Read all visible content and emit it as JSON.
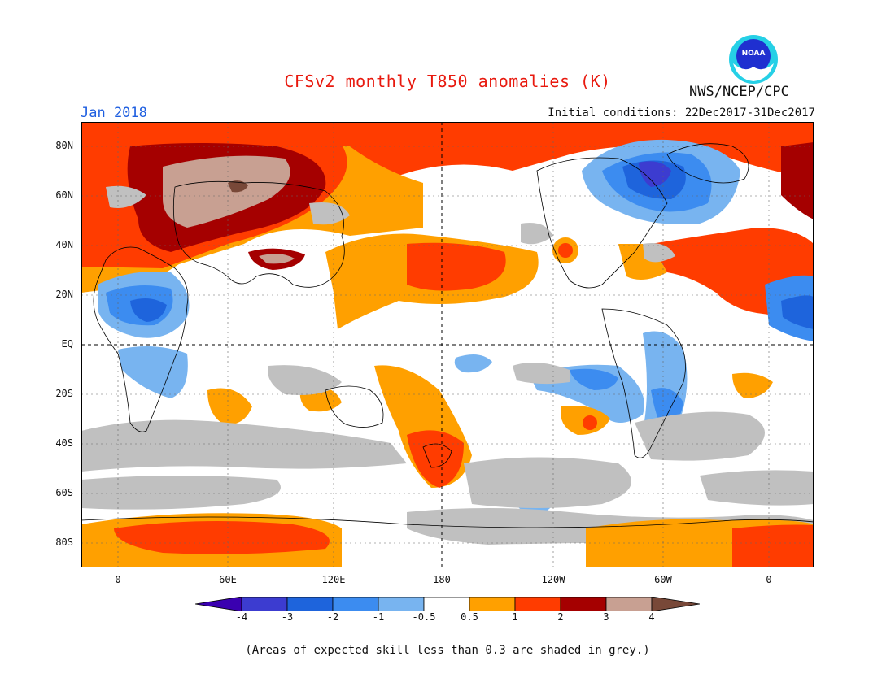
{
  "header": {
    "title": "CFSv2 monthly T850 anomalies (K)",
    "period": "Jan 2018",
    "initial_conditions": "Initial conditions: 22Dec2017-31Dec2017",
    "agency": "NWS/NCEP/CPC",
    "logo_text": "NOAA"
  },
  "map": {
    "lat_labels": [
      "80N",
      "60N",
      "40N",
      "20N",
      "EQ",
      "20S",
      "40S",
      "60S",
      "80S"
    ],
    "lon_labels": [
      "0",
      "60E",
      "120E",
      "180",
      "120W",
      "60W",
      "0"
    ]
  },
  "legend": {
    "tick_labels": [
      "-4",
      "-3",
      "-2",
      "-1",
      "-0.5",
      "0.5",
      "1",
      "2",
      "3",
      "4"
    ],
    "colors": [
      "#3a00b0",
      "#3c3cd0",
      "#1e64dc",
      "#3c8cf0",
      "#78b4f0",
      "#ffffff",
      "#ffa000",
      "#ff3c00",
      "#a50000",
      "#c8a092",
      "#784838"
    ],
    "skill_grey": "#c0c0c0"
  },
  "footnote": "(Areas of expected skill less than 0.3 are shaded in grey.)"
}
